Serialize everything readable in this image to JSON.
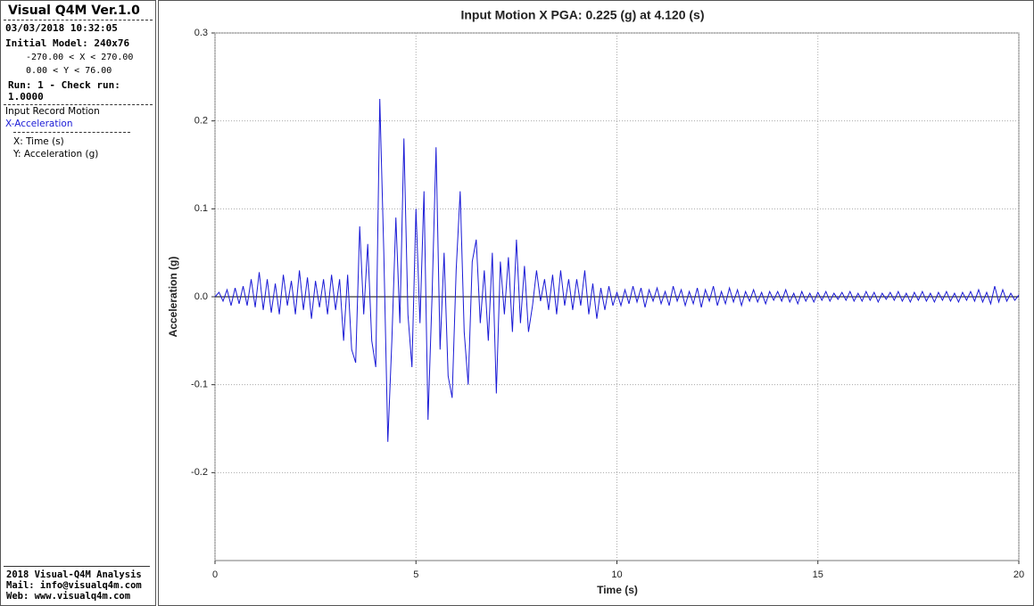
{
  "sidebar": {
    "title": "Visual Q4M Ver.1.0",
    "timestamp": "03/03/2018 10:32:05",
    "model": "Initial Model: 240x76",
    "x_range": "-270.00 < X < 270.00",
    "y_range": "0.00 < Y < 76.00",
    "run": "Run: 1 - Check run: 1.0000",
    "record": "Input Record Motion",
    "component": "X-Acceleration",
    "x_axis": "X: Time (s)",
    "y_axis": "Y: Acceleration (g)",
    "footer": [
      "2018 Visual-Q4M Analysis",
      "Mail: info@visualq4m.com",
      "Web: www.visualq4m.com"
    ]
  },
  "chart_data": {
    "type": "line",
    "title": "Input Motion X PGA: 0.225 (g) at 4.120 (s)",
    "xlabel": "Time (s)",
    "ylabel": "Acceleration (g)",
    "xlim": [
      0,
      20
    ],
    "ylim": [
      -0.3,
      0.3
    ],
    "xticks": [
      0,
      5,
      10,
      15,
      20
    ],
    "yticks": [
      0.3,
      0.2,
      0.1,
      {
        "value": 0,
        "label": "0.0"
      },
      -0.1,
      -0.2
    ],
    "grid": true,
    "x": [
      0,
      0.1,
      0.2,
      0.3,
      0.4,
      0.5,
      0.6,
      0.7,
      0.8,
      0.9,
      1,
      1.1,
      1.2,
      1.3,
      1.4,
      1.5,
      1.6,
      1.7,
      1.8,
      1.9,
      2,
      2.1,
      2.2,
      2.3,
      2.4,
      2.5,
      2.6,
      2.7,
      2.8,
      2.9,
      3,
      3.1,
      3.2,
      3.3,
      3.4,
      3.5,
      3.6,
      3.7,
      3.8,
      3.9,
      4,
      4.1,
      4.2,
      4.3,
      4.4,
      4.5,
      4.6,
      4.7,
      4.8,
      4.9,
      5,
      5.1,
      5.2,
      5.3,
      5.4,
      5.5,
      5.6,
      5.7,
      5.8,
      5.9,
      6,
      6.1,
      6.2,
      6.3,
      6.4,
      6.5,
      6.6,
      6.7,
      6.8,
      6.9,
      7,
      7.1,
      7.2,
      7.3,
      7.4,
      7.5,
      7.6,
      7.7,
      7.8,
      7.9,
      8,
      8.1,
      8.2,
      8.3,
      8.4,
      8.5,
      8.6,
      8.7,
      8.8,
      8.9,
      9,
      9.1,
      9.2,
      9.3,
      9.4,
      9.5,
      9.6,
      9.7,
      9.8,
      9.9,
      10,
      10.1,
      10.2,
      10.3,
      10.4,
      10.5,
      10.6,
      10.7,
      10.8,
      10.9,
      11,
      11.1,
      11.2,
      11.3,
      11.4,
      11.5,
      11.6,
      11.7,
      11.8,
      11.9,
      12,
      12.1,
      12.2,
      12.3,
      12.4,
      12.5,
      12.6,
      12.7,
      12.8,
      12.9,
      13,
      13.1,
      13.2,
      13.3,
      13.4,
      13.5,
      13.6,
      13.7,
      13.8,
      13.9,
      14,
      14.1,
      14.2,
      14.3,
      14.4,
      14.5,
      14.6,
      14.7,
      14.8,
      14.9,
      15,
      15.1,
      15.2,
      15.3,
      15.4,
      15.5,
      15.6,
      15.7,
      15.8,
      15.9,
      16,
      16.1,
      16.2,
      16.3,
      16.4,
      16.5,
      16.6,
      16.7,
      16.8,
      16.9,
      17,
      17.1,
      17.2,
      17.3,
      17.4,
      17.5,
      17.6,
      17.7,
      17.8,
      17.9,
      18,
      18.1,
      18.2,
      18.3,
      18.4,
      18.5,
      18.6,
      18.7,
      18.8,
      18.9,
      19,
      19.1,
      19.2,
      19.3,
      19.4,
      19.5,
      19.6,
      19.7,
      19.8,
      19.9,
      20
    ],
    "series": [
      {
        "color": "#1a1ad6",
        "values": [
          0,
          0.005,
          -0.005,
          0.008,
          -0.01,
          0.01,
          -0.008,
          0.012,
          -0.01,
          0.02,
          -0.012,
          0.028,
          -0.015,
          0.02,
          -0.018,
          0.015,
          -0.02,
          0.025,
          -0.01,
          0.018,
          -0.02,
          0.03,
          -0.015,
          0.022,
          -0.025,
          0.018,
          -0.012,
          0.02,
          -0.02,
          0.025,
          -0.015,
          0.02,
          -0.05,
          0.025,
          -0.06,
          -0.075,
          0.08,
          -0.02,
          0.06,
          -0.05,
          -0.08,
          0.225,
          0.05,
          -0.165,
          -0.05,
          0.09,
          -0.03,
          0.18,
          -0.02,
          -0.08,
          0.1,
          -0.03,
          0.12,
          -0.14,
          0.0,
          0.17,
          -0.06,
          0.05,
          -0.09,
          -0.115,
          0.03,
          0.12,
          -0.04,
          -0.1,
          0.04,
          0.065,
          -0.03,
          0.03,
          -0.05,
          0.05,
          -0.11,
          0.04,
          -0.02,
          0.045,
          -0.04,
          0.065,
          -0.03,
          0.035,
          -0.04,
          -0.01,
          0.03,
          -0.005,
          0.02,
          -0.015,
          0.025,
          -0.02,
          0.03,
          -0.01,
          0.02,
          -0.015,
          0.02,
          -0.01,
          0.03,
          -0.02,
          0.015,
          -0.025,
          0.01,
          -0.015,
          0.012,
          -0.01,
          0.005,
          -0.01,
          0.008,
          -0.008,
          0.012,
          -0.006,
          0.01,
          -0.012,
          0.008,
          -0.005,
          0.01,
          -0.008,
          0.006,
          -0.01,
          0.012,
          -0.005,
          0.008,
          -0.01,
          0.006,
          -0.008,
          0.01,
          -0.012,
          0.008,
          -0.005,
          0.012,
          -0.01,
          0.006,
          -0.008,
          0.01,
          -0.006,
          0.008,
          -0.01,
          0.006,
          -0.005,
          0.008,
          -0.006,
          0.005,
          -0.008,
          0.006,
          -0.004,
          0.006,
          -0.005,
          0.008,
          -0.006,
          0.004,
          -0.008,
          0.006,
          -0.005,
          0.004,
          -0.006,
          0.005,
          -0.004,
          0.006,
          -0.005,
          0.004,
          -0.003,
          0.005,
          -0.004,
          0.006,
          -0.005,
          0.004,
          -0.005,
          0.006,
          -0.004,
          0.005,
          -0.006,
          0.004,
          -0.003,
          0.005,
          -0.004,
          0.006,
          -0.005,
          0.004,
          -0.006,
          0.005,
          -0.004,
          0.006,
          -0.005,
          0.004,
          -0.006,
          0.005,
          -0.004,
          0.006,
          -0.005,
          0.004,
          -0.006,
          0.005,
          -0.004,
          0.006,
          -0.005,
          0.008,
          -0.006,
          0.005,
          -0.008,
          0.012,
          -0.006,
          0.008,
          -0.005,
          0.004,
          -0.004,
          0.002
        ]
      }
    ]
  }
}
